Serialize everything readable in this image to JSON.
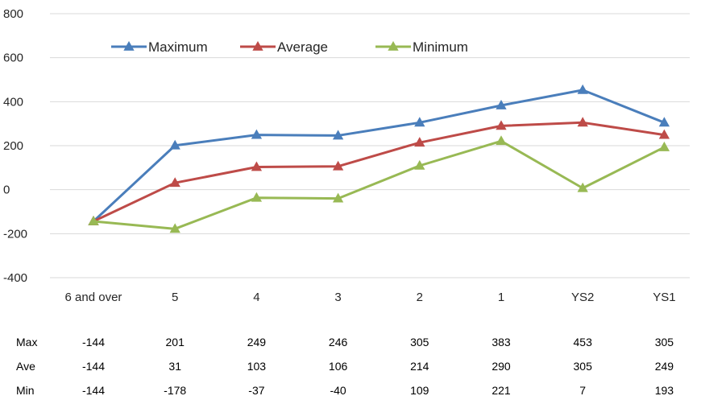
{
  "chart_data": {
    "type": "line",
    "title": "",
    "xlabel": "",
    "ylabel": "",
    "categories": [
      "6 and over",
      "5",
      "4",
      "3",
      "2",
      "1",
      "YS2",
      "YS1"
    ],
    "ylim": [
      -400,
      800
    ],
    "yticks": [
      800,
      600,
      400,
      200,
      0,
      -200,
      -400
    ],
    "grid": "horizontal",
    "legend_position": "top-center",
    "series": [
      {
        "name": "Maximum",
        "color": "#4a7ebb",
        "values": [
          -144,
          201,
          249,
          246,
          305,
          383,
          453,
          305
        ]
      },
      {
        "name": "Average",
        "color": "#be4b48",
        "values": [
          -144,
          31,
          103,
          106,
          214,
          290,
          305,
          249
        ]
      },
      {
        "name": "Minimum",
        "color": "#98b954",
        "values": [
          -144,
          -178,
          -37,
          -40,
          109,
          221,
          7,
          193
        ]
      }
    ],
    "table": {
      "row_labels": [
        "Max",
        "Ave",
        "Min"
      ],
      "rows": [
        [
          "-144",
          "201",
          "249",
          "246",
          "305",
          "383",
          "453",
          "305"
        ],
        [
          "-144",
          "31",
          "103",
          "106",
          "214",
          "290",
          "305",
          "249"
        ],
        [
          "-144",
          "-178",
          "-37",
          "-40",
          "109",
          "221",
          "7",
          "193"
        ]
      ]
    }
  }
}
